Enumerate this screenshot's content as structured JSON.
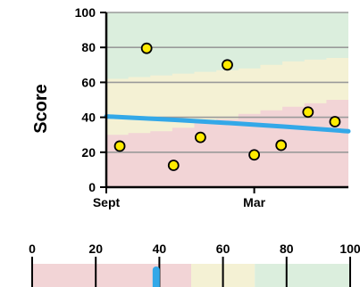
{
  "chart_data": [
    {
      "type": "scatter",
      "ylabel": "Score",
      "ylim": [
        0,
        100
      ],
      "y_ticks": [
        0,
        20,
        40,
        60,
        80,
        100
      ],
      "x_tick_labels": [
        "Sept",
        "Mar"
      ],
      "grid": true,
      "bands": [
        {
          "name": "low",
          "color": "#f2d4d6"
        },
        {
          "name": "mid",
          "color": "#f4f1d4"
        },
        {
          "name": "high",
          "color": "#dbeedd"
        }
      ],
      "band_boundaries": {
        "lower": [
          30,
          31,
          32,
          34,
          37,
          39,
          42,
          44,
          46,
          48,
          50
        ],
        "upper": [
          62,
          63,
          64,
          65,
          66,
          67,
          68,
          70,
          72,
          73,
          74
        ]
      },
      "points": [
        {
          "x": 0.5,
          "y": 23.5
        },
        {
          "x": 1.5,
          "y": 79.5
        },
        {
          "x": 2.5,
          "y": 12.5
        },
        {
          "x": 3.5,
          "y": 28.5
        },
        {
          "x": 4.5,
          "y": 70.0
        },
        {
          "x": 5.5,
          "y": 18.5
        },
        {
          "x": 6.5,
          "y": 24.0
        },
        {
          "x": 7.5,
          "y": 43.0
        },
        {
          "x": 8.5,
          "y": 37.5
        }
      ],
      "trend": {
        "start": 40.5,
        "end": 32.0
      },
      "x_range": [
        0,
        9
      ],
      "x_tick_positions": [
        0,
        5.5
      ],
      "colors": {
        "point_fill": "#ffeb00",
        "trend": "#33a8e8"
      }
    },
    {
      "type": "bar",
      "x_ticks": [
        0,
        20,
        40,
        60,
        80,
        100
      ],
      "xlim": [
        0,
        100
      ],
      "segments": [
        {
          "from": 0,
          "to": 50,
          "color": "#f2d4d6"
        },
        {
          "from": 50,
          "to": 70,
          "color": "#f4f1d4"
        },
        {
          "from": 70,
          "to": 100,
          "color": "#dbeedd"
        }
      ],
      "marker_value": 39,
      "colors": {
        "marker": "#33a8e8"
      }
    }
  ]
}
